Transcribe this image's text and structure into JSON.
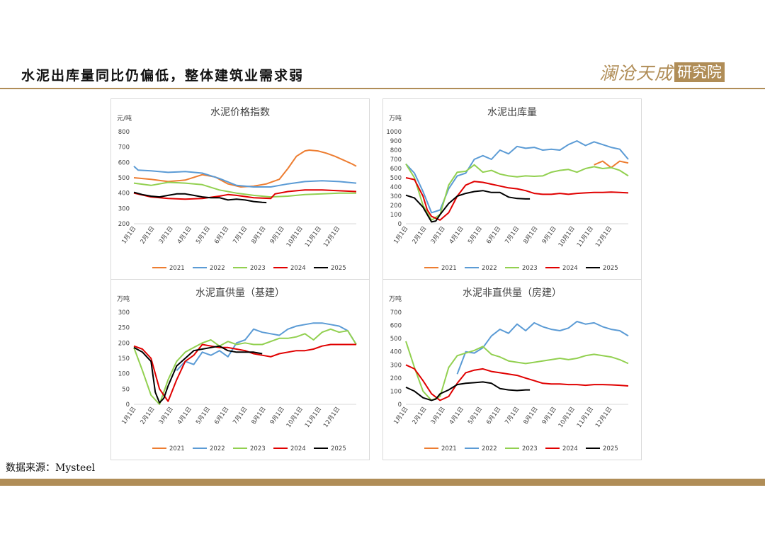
{
  "header": {
    "title": "水泥出库量同比仍偏低，整体建筑业需求弱",
    "logo_text": "澜沧天成",
    "logo_box": "研究院"
  },
  "footer": {
    "source": "数据来源：Mysteel"
  },
  "colors": {
    "2021": "#ed7d31",
    "2022": "#5b9bd5",
    "2023": "#92d050",
    "2024": "#e00000",
    "2025": "#000000",
    "brand": "#b08d57"
  },
  "chart_data": [
    {
      "type": "line",
      "title": "水泥价格指数",
      "ylabel": "元/吨",
      "ylim": [
        200,
        800
      ],
      "yticks": [
        200,
        300,
        400,
        500,
        600,
        700,
        800
      ],
      "xlim": [
        0,
        52
      ],
      "xticks": [
        "1月1日",
        "2月1日",
        "3月1日",
        "4月1日",
        "5月1日",
        "6月1日",
        "7月1日",
        "8月1日",
        "9月1日",
        "10月1日",
        "11月1日",
        "12月1日"
      ],
      "series": [
        {
          "name": "2021",
          "x": [
            0,
            4,
            8,
            12,
            16,
            19,
            22,
            25,
            28,
            31,
            34,
            36,
            38,
            40,
            41,
            43,
            45,
            47,
            49,
            51,
            52
          ],
          "y": [
            500,
            490,
            475,
            485,
            520,
            505,
            460,
            440,
            445,
            460,
            490,
            560,
            640,
            675,
            680,
            675,
            660,
            640,
            615,
            590,
            575
          ]
        },
        {
          "name": "2022",
          "x": [
            0,
            1,
            4,
            8,
            12,
            16,
            20,
            24,
            28,
            32,
            36,
            40,
            44,
            48,
            52
          ],
          "y": [
            575,
            550,
            545,
            535,
            540,
            530,
            495,
            450,
            440,
            440,
            460,
            475,
            480,
            475,
            465
          ]
        },
        {
          "name": "2023",
          "x": [
            0,
            4,
            8,
            12,
            16,
            20,
            24,
            28,
            32,
            36,
            40,
            44,
            48,
            52
          ],
          "y": [
            465,
            450,
            470,
            465,
            455,
            420,
            400,
            385,
            375,
            380,
            390,
            395,
            400,
            400
          ]
        },
        {
          "name": "2024",
          "x": [
            0,
            4,
            8,
            12,
            16,
            20,
            22,
            24,
            28,
            32,
            33,
            36,
            40,
            44,
            48,
            52
          ],
          "y": [
            400,
            375,
            365,
            360,
            365,
            380,
            390,
            385,
            370,
            365,
            395,
            410,
            420,
            420,
            415,
            410
          ]
        },
        {
          "name": "2025",
          "x": [
            0,
            2,
            4,
            6,
            8,
            10,
            12,
            14,
            16,
            18,
            20,
            22,
            24,
            26,
            28,
            30,
            31
          ],
          "y": [
            405,
            390,
            380,
            375,
            385,
            395,
            395,
            385,
            375,
            370,
            370,
            355,
            360,
            355,
            345,
            340,
            338
          ]
        }
      ]
    },
    {
      "type": "line",
      "title": "水泥出库量",
      "ylabel": "万吨",
      "ylim": [
        0,
        1000
      ],
      "yticks": [
        0,
        100,
        200,
        300,
        400,
        500,
        600,
        700,
        800,
        900,
        1000
      ],
      "xlim": [
        0,
        52
      ],
      "xticks": [
        "1月1日",
        "2月1日",
        "3月1日",
        "4月1日",
        "5月1日",
        "6月1日",
        "7月1日",
        "8月1日",
        "9月1日",
        "10月1日",
        "11月1日",
        "12月1日"
      ],
      "series": [
        {
          "name": "2021",
          "x": [
            44,
            46,
            48,
            50,
            52
          ],
          "y": [
            640,
            680,
            610,
            680,
            660
          ]
        },
        {
          "name": "2022",
          "x": [
            0,
            2,
            4,
            6,
            8,
            10,
            12,
            14,
            16,
            18,
            20,
            22,
            24,
            26,
            28,
            30,
            32,
            34,
            36,
            38,
            40,
            42,
            44,
            46,
            48,
            50,
            52
          ],
          "y": [
            650,
            550,
            350,
            120,
            150,
            380,
            520,
            550,
            700,
            740,
            700,
            800,
            760,
            840,
            820,
            830,
            800,
            810,
            800,
            860,
            900,
            850,
            890,
            860,
            830,
            810,
            700
          ]
        },
        {
          "name": "2023",
          "x": [
            0,
            2,
            4,
            6,
            8,
            10,
            12,
            14,
            16,
            18,
            20,
            22,
            24,
            26,
            28,
            30,
            32,
            34,
            36,
            38,
            40,
            42,
            44,
            46,
            48,
            50,
            52
          ],
          "y": [
            650,
            500,
            200,
            40,
            100,
            420,
            560,
            570,
            640,
            560,
            580,
            540,
            520,
            510,
            520,
            515,
            520,
            560,
            580,
            590,
            560,
            600,
            620,
            600,
            610,
            580,
            520
          ]
        },
        {
          "name": "2024",
          "x": [
            0,
            2,
            4,
            5,
            6,
            8,
            10,
            12,
            14,
            16,
            18,
            20,
            22,
            24,
            26,
            28,
            30,
            32,
            34,
            36,
            38,
            40,
            42,
            44,
            46,
            48,
            50,
            52
          ],
          "y": [
            500,
            480,
            300,
            150,
            80,
            40,
            120,
            300,
            420,
            460,
            450,
            430,
            410,
            390,
            380,
            360,
            330,
            320,
            320,
            330,
            320,
            330,
            335,
            340,
            340,
            345,
            340,
            335
          ]
        },
        {
          "name": "2025",
          "x": [
            0,
            2,
            4,
            6,
            7,
            8,
            10,
            12,
            14,
            16,
            18,
            20,
            22,
            24,
            26,
            28,
            29
          ],
          "y": [
            310,
            280,
            180,
            20,
            30,
            100,
            220,
            300,
            330,
            350,
            360,
            340,
            340,
            290,
            275,
            270,
            270
          ]
        }
      ]
    },
    {
      "type": "line",
      "title": "水泥直供量（基建）",
      "ylabel": "万吨",
      "ylim": [
        0,
        300
      ],
      "yticks": [
        0,
        50,
        100,
        150,
        200,
        250,
        300
      ],
      "xlim": [
        0,
        52
      ],
      "xticks": [
        "1月1日",
        "2月1日",
        "3月1日",
        "4月1日",
        "5月1日",
        "6月1日",
        "7月1日",
        "8月1日",
        "9月1日",
        "10月1日",
        "11月1日",
        "12月1日"
      ],
      "series": [
        {
          "name": "2021",
          "x": [],
          "y": []
        },
        {
          "name": "2022",
          "x": [
            10,
            12,
            14,
            16,
            18,
            20,
            22,
            24,
            26,
            28,
            30,
            32,
            34,
            36,
            38,
            40,
            42,
            44,
            46,
            48,
            50,
            52
          ],
          "y": [
            110,
            140,
            130,
            170,
            160,
            175,
            155,
            200,
            210,
            245,
            235,
            230,
            225,
            245,
            255,
            260,
            265,
            265,
            260,
            255,
            240,
            195
          ]
        },
        {
          "name": "2023",
          "x": [
            0,
            2,
            4,
            6,
            8,
            10,
            12,
            14,
            16,
            18,
            20,
            22,
            24,
            26,
            28,
            30,
            32,
            34,
            36,
            38,
            40,
            42,
            44,
            46,
            48,
            50,
            52
          ],
          "y": [
            185,
            110,
            30,
            0,
            80,
            140,
            170,
            185,
            200,
            210,
            190,
            205,
            195,
            200,
            195,
            195,
            205,
            215,
            215,
            220,
            230,
            210,
            235,
            245,
            235,
            240,
            195
          ]
        },
        {
          "name": "2024",
          "x": [
            0,
            2,
            4,
            6,
            8,
            10,
            12,
            14,
            16,
            18,
            20,
            22,
            24,
            26,
            28,
            30,
            32,
            34,
            36,
            38,
            40,
            42,
            44,
            46,
            48,
            50,
            52
          ],
          "y": [
            190,
            180,
            150,
            50,
            10,
            80,
            140,
            160,
            195,
            190,
            185,
            185,
            180,
            175,
            165,
            160,
            155,
            165,
            170,
            175,
            175,
            180,
            190,
            195,
            195,
            195,
            195
          ]
        },
        {
          "name": "2025",
          "x": [
            0,
            2,
            4,
            5,
            6,
            7,
            8,
            10,
            12,
            14,
            16,
            18,
            20,
            22,
            24,
            26,
            28,
            30
          ],
          "y": [
            185,
            170,
            140,
            40,
            5,
            20,
            60,
            125,
            150,
            175,
            180,
            185,
            190,
            175,
            170,
            170,
            170,
            165
          ]
        }
      ]
    },
    {
      "type": "line",
      "title": "水泥非直供量（房建）",
      "ylabel": "万吨",
      "ylim": [
        0,
        700
      ],
      "yticks": [
        0,
        100,
        200,
        300,
        400,
        500,
        600,
        700
      ],
      "xlim": [
        0,
        52
      ],
      "xticks": [
        "1月1日",
        "2月1日",
        "3月1日",
        "4月1日",
        "5月1日",
        "6月1日",
        "7月1日",
        "8月1日",
        "9月1日",
        "10月1日",
        "11月1日",
        "12月1日"
      ],
      "series": [
        {
          "name": "2021",
          "x": [],
          "y": []
        },
        {
          "name": "2022",
          "x": [
            12,
            14,
            16,
            18,
            20,
            22,
            24,
            26,
            28,
            30,
            32,
            34,
            36,
            38,
            40,
            42,
            44,
            46,
            48,
            50,
            52
          ],
          "y": [
            230,
            400,
            390,
            430,
            520,
            570,
            540,
            610,
            560,
            620,
            590,
            570,
            560,
            580,
            630,
            610,
            620,
            590,
            570,
            560,
            520
          ]
        },
        {
          "name": "2023",
          "x": [
            0,
            2,
            4,
            6,
            8,
            10,
            12,
            14,
            16,
            18,
            20,
            22,
            24,
            26,
            28,
            30,
            32,
            34,
            36,
            38,
            40,
            42,
            44,
            46,
            48,
            50,
            52
          ],
          "y": [
            480,
            280,
            100,
            30,
            60,
            280,
            370,
            390,
            410,
            440,
            380,
            360,
            330,
            320,
            310,
            320,
            330,
            340,
            350,
            340,
            350,
            370,
            380,
            370,
            360,
            340,
            310
          ]
        },
        {
          "name": "2024",
          "x": [
            0,
            2,
            4,
            6,
            8,
            10,
            12,
            14,
            16,
            18,
            20,
            22,
            24,
            26,
            28,
            30,
            32,
            34,
            36,
            38,
            40,
            42,
            44,
            46,
            48,
            50,
            52
          ],
          "y": [
            300,
            270,
            180,
            80,
            30,
            60,
            160,
            240,
            260,
            270,
            250,
            240,
            230,
            220,
            200,
            180,
            160,
            155,
            155,
            150,
            150,
            145,
            150,
            150,
            148,
            145,
            140
          ]
        },
        {
          "name": "2025",
          "x": [
            0,
            2,
            4,
            6,
            7,
            8,
            10,
            12,
            14,
            16,
            18,
            20,
            22,
            24,
            26,
            28,
            29
          ],
          "y": [
            130,
            100,
            50,
            30,
            40,
            80,
            110,
            150,
            160,
            165,
            170,
            160,
            120,
            110,
            105,
            110,
            110
          ]
        }
      ]
    }
  ]
}
